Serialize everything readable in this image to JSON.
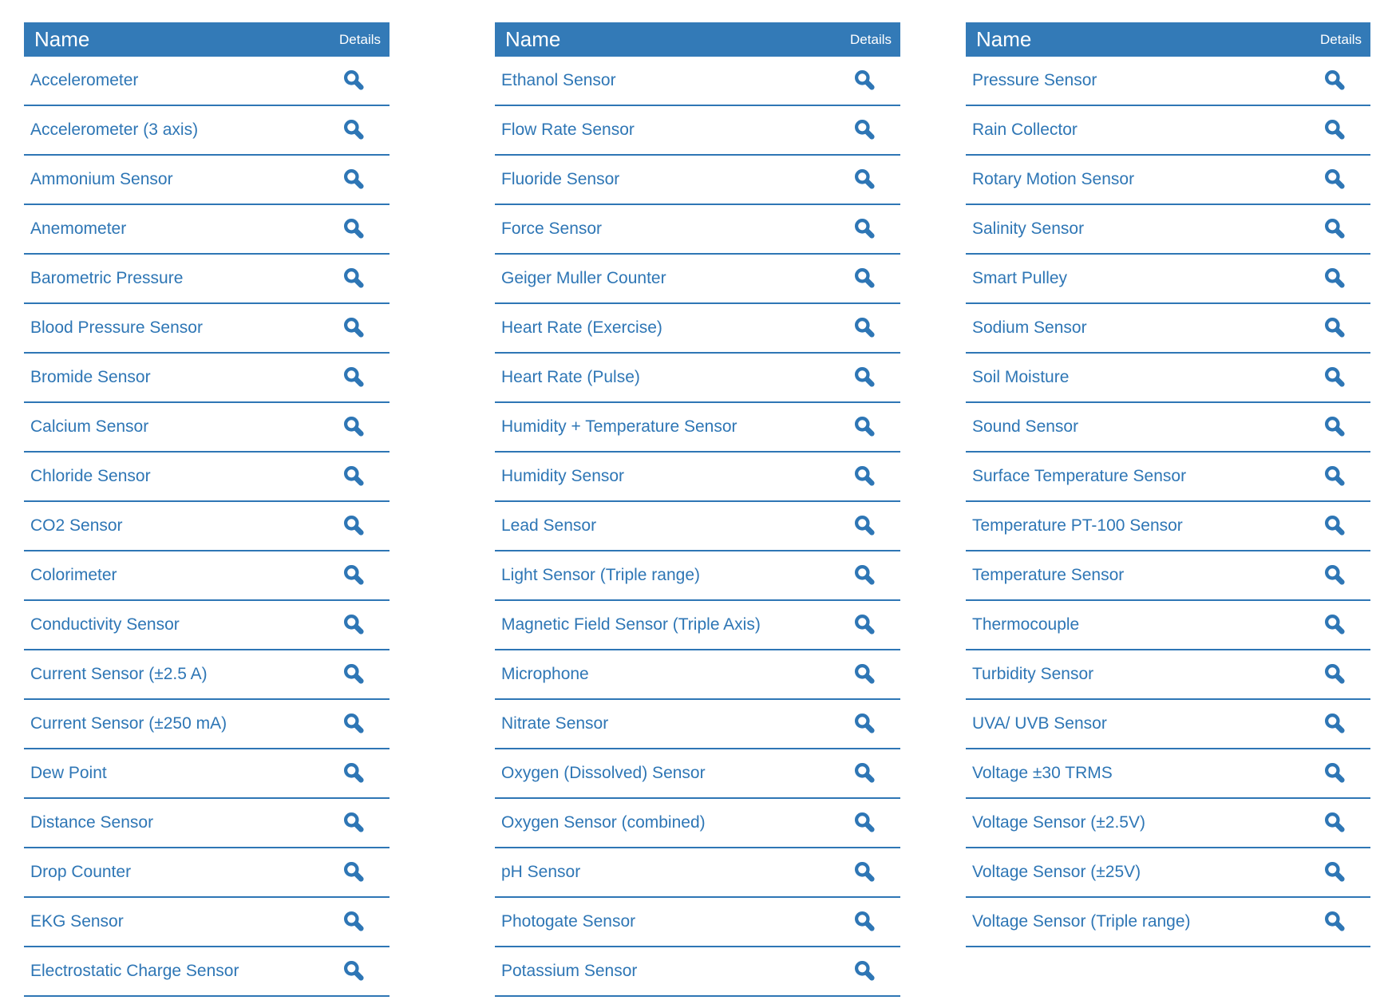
{
  "colors": {
    "header_bg": "#337AB7",
    "header_text": "#FFFFFF",
    "link_text": "#2E76B5",
    "divider": "#2E76B5",
    "icon": "#2E76B5",
    "page_bg": "#FFFFFF"
  },
  "table_header": {
    "name_label": "Name",
    "details_label": "Details"
  },
  "icons": {
    "details_icon": "magnifier-icon"
  },
  "columns": [
    {
      "items": [
        "Accelerometer",
        "Accelerometer (3 axis)",
        "Ammonium Sensor",
        "Anemometer",
        "Barometric Pressure",
        "Blood Pressure Sensor",
        "Bromide Sensor",
        "Calcium Sensor",
        "Chloride Sensor",
        "CO2 Sensor",
        "Colorimeter",
        "Conductivity Sensor",
        "Current Sensor (±2.5 A)",
        "Current Sensor (±250 mA)",
        "Dew Point",
        "Distance Sensor",
        "Drop Counter",
        "EKG Sensor",
        "Electrostatic Charge Sensor"
      ]
    },
    {
      "items": [
        "Ethanol Sensor",
        "Flow Rate Sensor",
        "Fluoride Sensor",
        "Force Sensor",
        "Geiger Muller Counter",
        "Heart Rate (Exercise)",
        "Heart Rate (Pulse)",
        "Humidity + Temperature Sensor",
        "Humidity Sensor",
        "Lead Sensor",
        "Light Sensor (Triple range)",
        "Magnetic Field Sensor (Triple Axis)",
        "Microphone",
        "Nitrate Sensor",
        "Oxygen (Dissolved) Sensor",
        "Oxygen Sensor (combined)",
        "pH Sensor",
        "Photogate Sensor",
        "Potassium Sensor"
      ]
    },
    {
      "items": [
        "Pressure Sensor",
        "Rain Collector",
        "Rotary Motion Sensor",
        "Salinity Sensor",
        "Smart Pulley",
        "Sodium Sensor",
        "Soil Moisture",
        "Sound Sensor",
        "Surface Temperature Sensor",
        "Temperature PT-100 Sensor",
        "Temperature Sensor",
        "Thermocouple",
        "Turbidity Sensor",
        "UVA/ UVB Sensor",
        "Voltage ±30 TRMS",
        "Voltage Sensor (±2.5V)",
        "Voltage Sensor (±25V)",
        "Voltage Sensor (Triple range)"
      ]
    }
  ]
}
